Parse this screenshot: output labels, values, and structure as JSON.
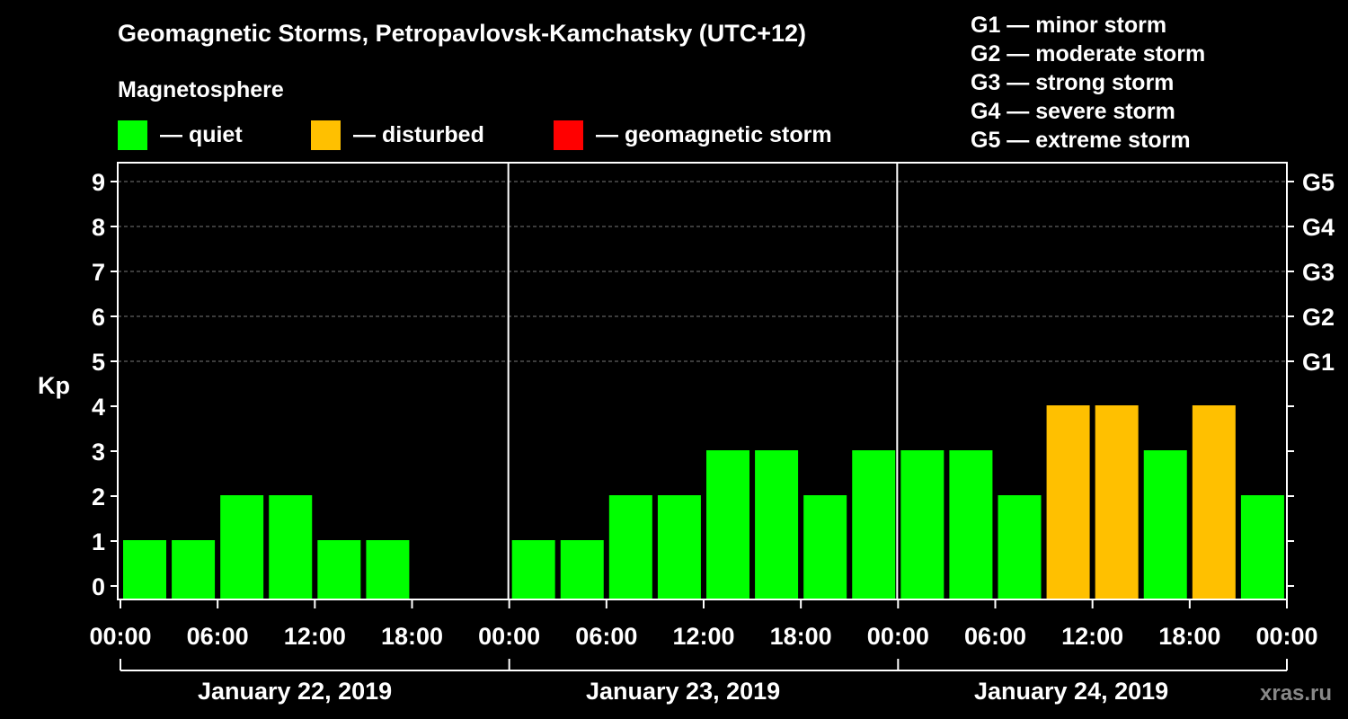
{
  "title": "Geomagnetic Storms, Petropavlovsk-Kamchatsky (UTC+12)",
  "legend": {
    "title": "Magnetosphere",
    "items": [
      {
        "label": "— quiet",
        "color": "#00ff00"
      },
      {
        "label": "— disturbed",
        "color": "#ffc000"
      },
      {
        "label": "— geomagnetic storm",
        "color": "#ff0000"
      }
    ]
  },
  "storm_scale": [
    "G1 — minor storm",
    "G2 — moderate storm",
    "G3 — strong storm",
    "G4 — severe storm",
    "G5 — extreme storm"
  ],
  "watermark": "xras.ru",
  "chart_data": {
    "type": "bar",
    "ylabel": "Kp",
    "ylim": [
      0,
      9
    ],
    "yticks": [
      "0",
      "1",
      "2",
      "3",
      "4",
      "5",
      "6",
      "7",
      "8",
      "9"
    ],
    "right_axis_labels": [
      "G1",
      "G2",
      "G3",
      "G4",
      "G5"
    ],
    "right_axis_values": [
      5,
      6,
      7,
      8,
      9
    ],
    "xtick_labels": [
      "00:00",
      "06:00",
      "12:00",
      "18:00",
      "00:00",
      "06:00",
      "12:00",
      "18:00",
      "00:00",
      "06:00",
      "12:00",
      "18:00",
      "00:00"
    ],
    "days": [
      "January 22, 2019",
      "January 23, 2019",
      "January 24, 2019"
    ],
    "bar_interval_hours": 3,
    "values": [
      1,
      1,
      2,
      2,
      1,
      1,
      null,
      null,
      1,
      1,
      2,
      2,
      3,
      3,
      2,
      3,
      3,
      3,
      2,
      4,
      4,
      3,
      4,
      2
    ],
    "categories": [
      "quiet",
      "quiet",
      "quiet",
      "quiet",
      "quiet",
      "quiet",
      null,
      null,
      "quiet",
      "quiet",
      "quiet",
      "quiet",
      "quiet",
      "quiet",
      "quiet",
      "quiet",
      "quiet",
      "quiet",
      "quiet",
      "disturbed",
      "disturbed",
      "quiet",
      "disturbed",
      "quiet"
    ],
    "colors": {
      "quiet": "#00ff00",
      "disturbed": "#ffc000",
      "storm": "#ff0000"
    },
    "grid": true
  }
}
